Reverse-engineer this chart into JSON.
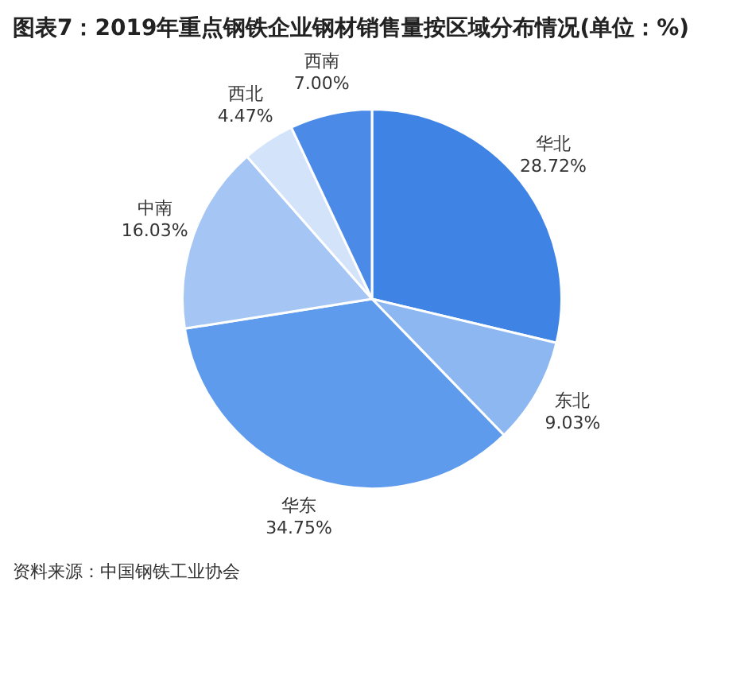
{
  "chart_data": {
    "type": "pie",
    "title": "图表7：2019年重点钢铁企业钢材销售量按区域分布情况(单位：%)",
    "categories": [
      "华北",
      "东北",
      "华东",
      "中南",
      "西北",
      "西南"
    ],
    "values": [
      28.72,
      9.03,
      34.75,
      16.03,
      4.47,
      7.0
    ],
    "value_labels": [
      "28.72%",
      "9.03%",
      "34.75%",
      "16.03%",
      "4.47%",
      "7.00%"
    ],
    "colors": [
      "#3f84e5",
      "#8db7f1",
      "#5f9bec",
      "#a5c6f4",
      "#d3e3fa",
      "#4b8be7"
    ],
    "legend": false,
    "annotations": [
      "资料来源：中国钢铁工业协会"
    ]
  }
}
